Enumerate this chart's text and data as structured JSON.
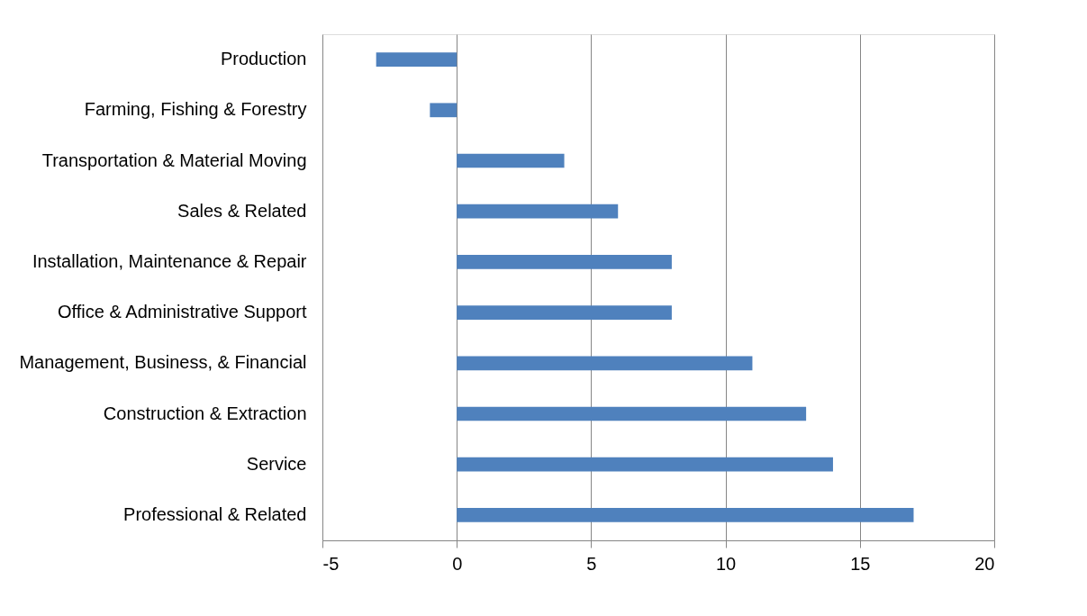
{
  "chart_data": {
    "type": "bar",
    "orientation": "horizontal",
    "categories": [
      "Production",
      "Farming, Fishing & Forestry",
      "Transportation & Material Moving",
      "Sales & Related",
      "Installation, Maintenance & Repair",
      "Office & Administrative Support",
      "Management, Business, & Financial",
      "Construction & Extraction",
      "Service",
      "Professional & Related"
    ],
    "values": [
      -3,
      -1,
      4,
      6,
      8,
      8,
      11,
      13,
      14,
      17
    ],
    "color": "#4f81bd",
    "xlim": [
      -5,
      20
    ],
    "xticks": [
      -5,
      0,
      5,
      10,
      15,
      20
    ],
    "grid": "x"
  }
}
